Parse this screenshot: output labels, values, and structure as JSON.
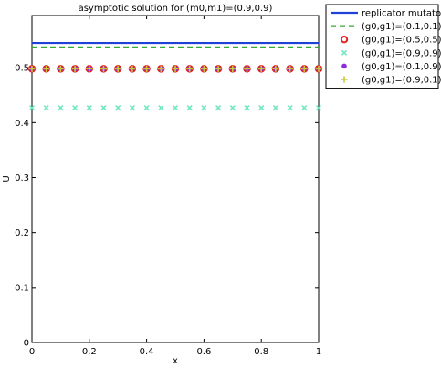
{
  "chart_data": {
    "type": "line",
    "title": "asymptotic solution for (m0,m1)=(0.9,0.9)",
    "xlabel": "x",
    "ylabel": "U",
    "x": [
      0,
      0.05,
      0.1,
      0.15,
      0.2,
      0.25,
      0.3,
      0.35,
      0.4,
      0.45,
      0.5,
      0.55,
      0.6,
      0.65,
      0.7,
      0.75,
      0.8,
      0.85,
      0.9,
      0.95,
      1
    ],
    "xlim": [
      0,
      1
    ],
    "xticks": [
      0,
      0.2,
      0.4,
      0.6,
      0.8,
      1
    ],
    "ylim": [
      0,
      0.595
    ],
    "yticks": [
      0,
      0.1,
      0.2,
      0.3,
      0.4,
      0.5
    ],
    "legend": "outside-top-right",
    "series": [
      {
        "name": "replicator mutator",
        "color": "#2041d8",
        "style": "solid",
        "values": [
          0.545,
          0.545,
          0.545,
          0.545,
          0.545,
          0.545,
          0.545,
          0.545,
          0.545,
          0.545,
          0.545,
          0.545,
          0.545,
          0.545,
          0.545,
          0.545,
          0.545,
          0.545,
          0.545,
          0.545,
          0.545
        ]
      },
      {
        "name": "(g0,g1)=(0.1,0.1)",
        "color": "#33aa33",
        "style": "dashed",
        "values": [
          0.537,
          0.537,
          0.537,
          0.537,
          0.537,
          0.537,
          0.537,
          0.537,
          0.537,
          0.537,
          0.537,
          0.537,
          0.537,
          0.537,
          0.537,
          0.537,
          0.537,
          0.537,
          0.537,
          0.537,
          0.537
        ]
      },
      {
        "name": "(g0,g1)=(0.5,0.5)",
        "color": "#e02020",
        "style": "circle",
        "values": [
          0.498,
          0.498,
          0.498,
          0.498,
          0.498,
          0.498,
          0.498,
          0.498,
          0.498,
          0.498,
          0.498,
          0.498,
          0.498,
          0.498,
          0.498,
          0.498,
          0.498,
          0.498,
          0.498,
          0.498,
          0.498
        ]
      },
      {
        "name": "(g0,g1)=(0.9,0.9)",
        "color": "#70e8c0",
        "style": "cross",
        "values": [
          0.427,
          0.427,
          0.427,
          0.427,
          0.427,
          0.427,
          0.427,
          0.427,
          0.427,
          0.427,
          0.427,
          0.427,
          0.427,
          0.427,
          0.427,
          0.427,
          0.427,
          0.427,
          0.427,
          0.427,
          0.427
        ]
      },
      {
        "name": "(g0,g1)=(0.1,0.9)",
        "color": "#8a2be2",
        "style": "dot",
        "values": [
          0.498,
          0.498,
          0.498,
          0.498,
          0.498,
          0.498,
          0.498,
          0.498,
          0.498,
          0.498,
          0.498,
          0.498,
          0.498,
          0.498,
          0.498,
          0.498,
          0.498,
          0.498,
          0.498,
          0.498,
          0.498
        ]
      },
      {
        "name": "(g0,g1)=(0.9,0.1)",
        "color": "#c8c83a",
        "style": "plus",
        "values": [
          0.498,
          0.498,
          0.498,
          0.498,
          0.498,
          0.498,
          0.498,
          0.498,
          0.498,
          0.498,
          0.498,
          0.498,
          0.498,
          0.498,
          0.498,
          0.498,
          0.498,
          0.498,
          0.498,
          0.498,
          0.498
        ]
      }
    ]
  }
}
